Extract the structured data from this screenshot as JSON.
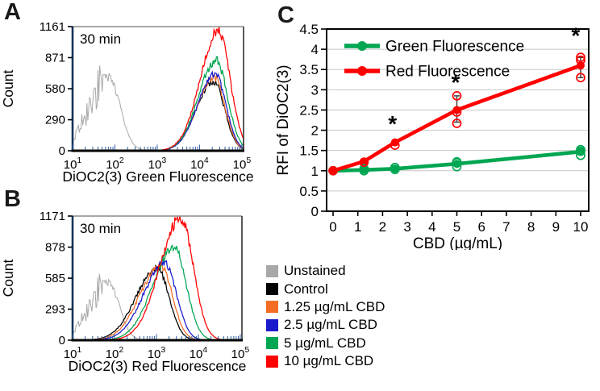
{
  "panel_labels": {
    "a": "A",
    "b": "B",
    "c": "C"
  },
  "legend": {
    "items": [
      {
        "label": "Unstained",
        "color": "#A8A8A8"
      },
      {
        "label": "Control",
        "color": "#000000"
      },
      {
        "label": "1.25 µg/mL CBD",
        "color": "#F36C24"
      },
      {
        "label": "2.5 µg/mL CBD",
        "color": "#1A1ACC"
      },
      {
        "label": "5 µg/mL CBD",
        "color": "#00A651"
      },
      {
        "label": "10 µg/mL CBD",
        "color": "#FF0000"
      }
    ]
  },
  "chart_data": [
    {
      "id": "panel_a",
      "type": "line",
      "variant": "flow_cytometry_histogram",
      "annotation": "30 min",
      "xlabel": "DiOC2(3) Green Fluorescence",
      "ylabel": "Count",
      "x_scale": "log10",
      "x_ticks": [
        "10^1",
        "10^2",
        "10^3",
        "10^4",
        "10^5"
      ],
      "y_ticks": [
        0,
        290,
        580,
        871,
        1161
      ],
      "ylim": [
        0,
        1161
      ],
      "grid": "off",
      "series": [
        {
          "name": "Unstained",
          "color": "#A8A8A8",
          "log_center": 1.85,
          "sigma_left": 0.45,
          "sigma_right": 0.27,
          "peak_count": 690,
          "jitter": 0.3
        },
        {
          "name": "Control",
          "color": "#000000",
          "log_center": 4.33,
          "sigma_left": 0.4,
          "sigma_right": 0.26,
          "peak_count": 650,
          "jitter": 0.05
        },
        {
          "name": "1.25 µg/mL CBD",
          "color": "#F36C24",
          "log_center": 4.34,
          "sigma_left": 0.4,
          "sigma_right": 0.26,
          "peak_count": 685,
          "jitter": 0.05
        },
        {
          "name": "2.5 µg/mL CBD",
          "color": "#1A1ACC",
          "log_center": 4.36,
          "sigma_left": 0.4,
          "sigma_right": 0.26,
          "peak_count": 715,
          "jitter": 0.05
        },
        {
          "name": "5 µg/mL CBD",
          "color": "#00A651",
          "log_center": 4.39,
          "sigma_left": 0.41,
          "sigma_right": 0.27,
          "peak_count": 845,
          "jitter": 0.05
        },
        {
          "name": "10 µg/mL CBD",
          "color": "#FF0000",
          "log_center": 4.44,
          "sigma_left": 0.42,
          "sigma_right": 0.28,
          "peak_count": 1115,
          "jitter": 0.05
        }
      ]
    },
    {
      "id": "panel_b",
      "type": "line",
      "variant": "flow_cytometry_histogram",
      "annotation": "30 min",
      "xlabel": "DiOC2(3) Red Fluorescence",
      "ylabel": "Count",
      "x_scale": "log10",
      "x_ticks": [
        "10^1",
        "10^2",
        "10^3",
        "10^4",
        "10^5"
      ],
      "y_ticks": [
        0,
        293,
        585,
        878,
        1171
      ],
      "ylim": [
        0,
        1171
      ],
      "grid": "off",
      "series": [
        {
          "name": "Unstained",
          "color": "#A8A8A8",
          "log_center": 1.85,
          "sigma_left": 0.44,
          "sigma_right": 0.26,
          "peak_count": 545,
          "jitter": 0.3
        },
        {
          "name": "Control",
          "color": "#000000",
          "log_center": 3.02,
          "sigma_left": 0.5,
          "sigma_right": 0.28,
          "peak_count": 680,
          "jitter": 0.05
        },
        {
          "name": "1.25 µg/mL CBD",
          "color": "#F36C24",
          "log_center": 3.1,
          "sigma_left": 0.5,
          "sigma_right": 0.28,
          "peak_count": 700,
          "jitter": 0.05
        },
        {
          "name": "2.5 µg/mL CBD",
          "color": "#1A1ACC",
          "log_center": 3.2,
          "sigma_left": 0.5,
          "sigma_right": 0.28,
          "peak_count": 725,
          "jitter": 0.05
        },
        {
          "name": "5 µg/mL CBD",
          "color": "#00A651",
          "log_center": 3.42,
          "sigma_left": 0.5,
          "sigma_right": 0.29,
          "peak_count": 875,
          "jitter": 0.05
        },
        {
          "name": "10 µg/mL CBD",
          "color": "#FF0000",
          "log_center": 3.58,
          "sigma_left": 0.5,
          "sigma_right": 0.3,
          "peak_count": 1150,
          "jitter": 0.05
        }
      ]
    },
    {
      "id": "panel_c",
      "type": "line",
      "xlabel": "CBD (µg/mL)",
      "ylabel": "RFI of DiOC2(3)",
      "xlim": [
        0,
        10
      ],
      "x_ticks": [
        0,
        1,
        2,
        3,
        4,
        5,
        6,
        7,
        8,
        9,
        10
      ],
      "ylim": [
        0,
        4.5
      ],
      "y_tick_step": 0.5,
      "grid": "horizontal",
      "legend_position": "inside-top-left",
      "series": [
        {
          "name": "Green Fluorescence",
          "color": "#00A651",
          "x": [
            0,
            1.25,
            2.5,
            5,
            10
          ],
          "y": [
            1.0,
            1.02,
            1.05,
            1.17,
            1.47
          ],
          "replicates": [
            [
              0,
              1.0
            ],
            [
              1.25,
              1.0
            ],
            [
              1.25,
              1.05
            ],
            [
              2.5,
              1.03
            ],
            [
              2.5,
              1.08
            ],
            [
              5,
              1.1
            ],
            [
              5,
              1.2
            ],
            [
              5,
              1.22
            ],
            [
              10,
              1.38
            ],
            [
              10,
              1.48
            ],
            [
              10,
              1.52
            ]
          ]
        },
        {
          "name": "Red Fluorescence",
          "color": "#FF0000",
          "x": [
            0,
            1.25,
            2.5,
            5,
            10
          ],
          "y": [
            1.0,
            1.23,
            1.7,
            2.5,
            3.6
          ],
          "replicates": [
            [
              0,
              1.0
            ],
            [
              1.25,
              1.21
            ],
            [
              2.5,
              1.63
            ],
            [
              5,
              2.17
            ],
            [
              5,
              2.45
            ],
            [
              5,
              2.85
            ],
            [
              10,
              3.3
            ],
            [
              10,
              3.73
            ],
            [
              10,
              3.8
            ]
          ],
          "error_bars": [
            {
              "x": 5,
              "lo": 2.2,
              "hi": 2.85
            },
            {
              "x": 10,
              "lo": 3.3,
              "hi": 3.8
            }
          ]
        }
      ],
      "annotations": [
        {
          "x": 2.4,
          "y": 1.97,
          "text": "*"
        },
        {
          "x": 4.95,
          "y": 3.0,
          "text": "*"
        },
        {
          "x": 9.8,
          "y": 4.15,
          "text": "*"
        }
      ]
    }
  ]
}
